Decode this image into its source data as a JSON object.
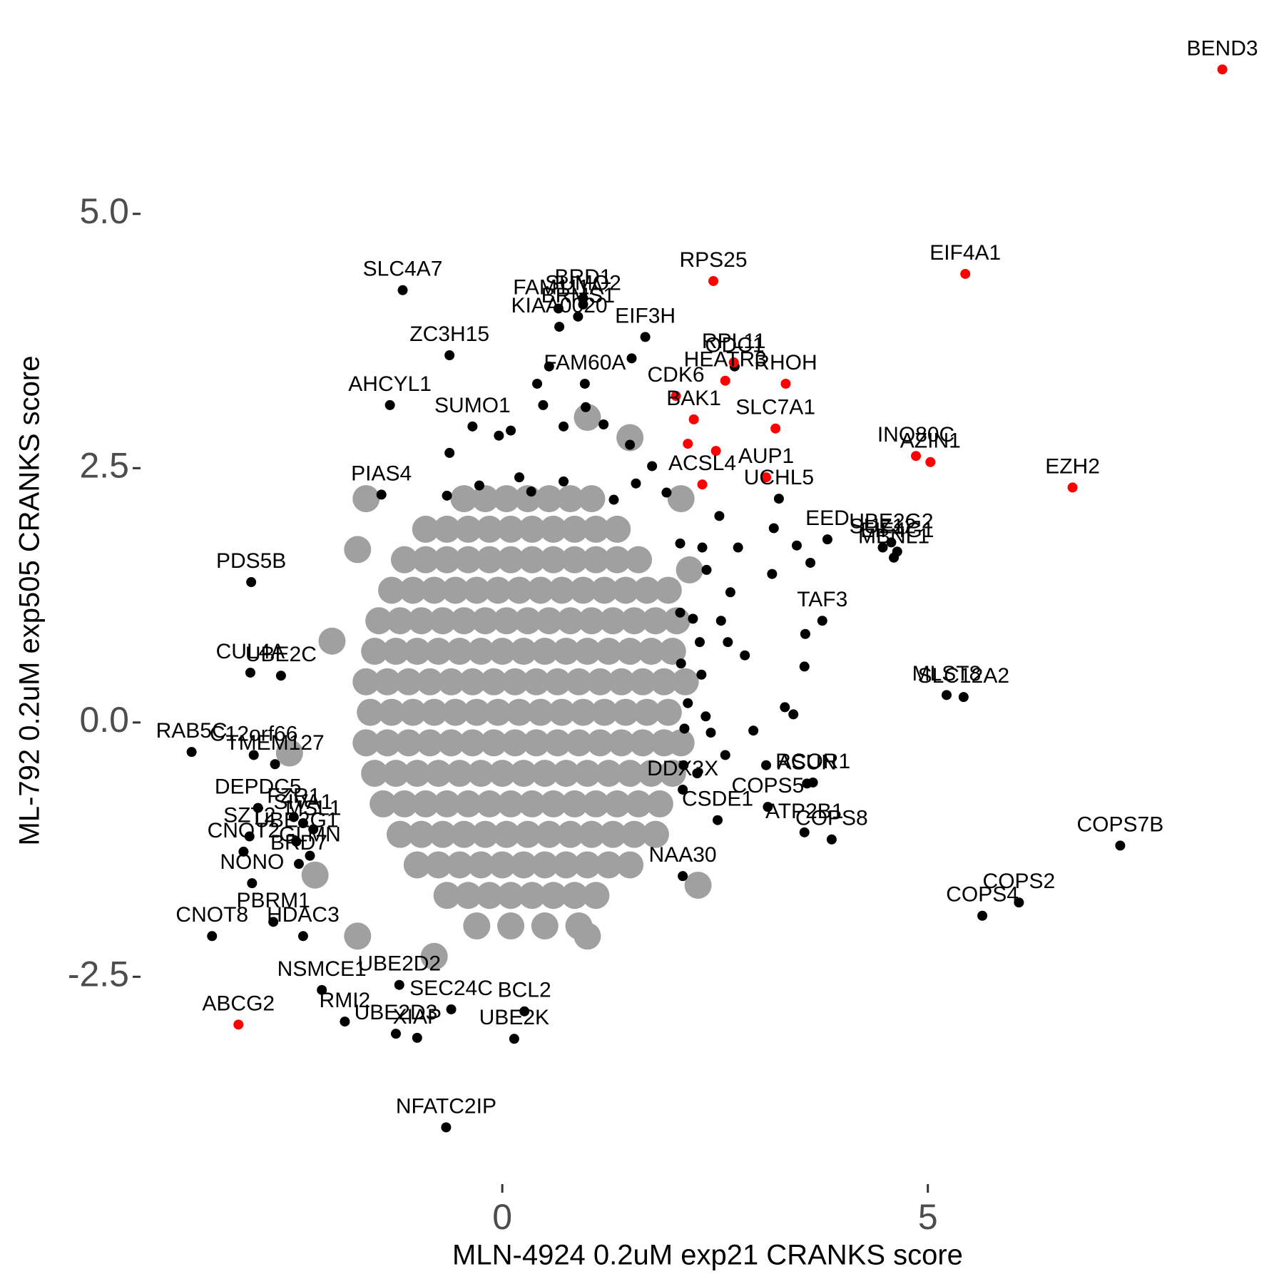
{
  "chart_data": {
    "type": "scatter",
    "x_label": "MLN-4924 0.2uM exp21 CRANKS score",
    "y_label": "ML-792 0.2uM exp505 CRANKS score",
    "xlim": [
      -4.2,
      9.0
    ],
    "ylim": [
      -4.3,
      6.78
    ],
    "xticks": [
      0,
      5
    ],
    "yticks": [
      {
        "value": -2.5,
        "label": "-2.5"
      },
      {
        "value": 0,
        "label": "0.0"
      },
      {
        "value": 2.5,
        "label": "2.5"
      },
      {
        "value": 5,
        "label": "5.0"
      }
    ],
    "grid": false,
    "series": [
      {
        "color": "#a0a0a0",
        "x": [
          -0.45,
          -0.2,
          0.05,
          0.3,
          0.55,
          0.8,
          1.05,
          -0.9,
          -0.65,
          -0.4,
          -0.15,
          0.1,
          0.35,
          0.6,
          0.85,
          1.1,
          1.35,
          -1.15,
          -0.9,
          -0.65,
          -0.4,
          -0.15,
          0.1,
          0.35,
          0.6,
          0.85,
          1.1,
          1.35,
          1.6,
          -1.3,
          -1.05,
          -0.8,
          -0.55,
          -0.3,
          -0.05,
          0.2,
          0.45,
          0.7,
          0.95,
          1.2,
          1.45,
          1.7,
          1.95,
          -1.45,
          -1.2,
          -0.95,
          -0.7,
          -0.45,
          -0.2,
          0.05,
          0.3,
          0.55,
          0.8,
          1.05,
          1.3,
          1.55,
          1.8,
          2.05,
          -1.5,
          -1.25,
          -1,
          -0.75,
          -0.5,
          -0.25,
          0,
          0.25,
          0.5,
          0.75,
          1,
          1.25,
          1.5,
          1.75,
          2.0,
          -1.6,
          -1.35,
          -1.1,
          -0.85,
          -0.6,
          -0.35,
          -0.1,
          0.15,
          0.4,
          0.65,
          0.9,
          1.15,
          1.4,
          1.65,
          1.9,
          2.15,
          -1.55,
          -1.3,
          -1.05,
          -0.8,
          -0.55,
          -0.3,
          -0.05,
          0.2,
          0.45,
          0.7,
          0.95,
          1.2,
          1.45,
          1.7,
          1.95,
          -1.6,
          -1.35,
          -1.1,
          -0.85,
          -0.6,
          -0.35,
          -0.1,
          0.15,
          0.4,
          0.65,
          0.9,
          1.15,
          1.4,
          1.65,
          1.9,
          2.1,
          -1.5,
          -1.25,
          -1,
          -0.75,
          -0.5,
          -0.25,
          0,
          0.25,
          0.5,
          0.75,
          1,
          1.25,
          1.5,
          1.75,
          2.0,
          -1.4,
          -1.15,
          -0.9,
          -0.65,
          -0.4,
          -0.15,
          0.1,
          0.35,
          0.6,
          0.85,
          1.1,
          1.35,
          1.6,
          1.85,
          -1.2,
          -0.95,
          -0.7,
          -0.45,
          -0.2,
          0.05,
          0.3,
          0.55,
          0.8,
          1.05,
          1.3,
          1.55,
          1.8,
          -1.0,
          -0.75,
          -0.5,
          -0.25,
          0,
          0.25,
          0.5,
          0.75,
          1.0,
          1.25,
          1.5,
          -0.65,
          -0.4,
          -0.15,
          0.1,
          0.35,
          0.6,
          0.85,
          1.1,
          -0.3,
          0.1,
          0.5,
          0.9,
          -1.6,
          -1.7,
          -2.5,
          -2.2,
          -1.7,
          2.1,
          2.3,
          1.0,
          -0.8,
          2.2,
          -2.0,
          1.5,
          1.0
        ],
        "values": [
          2.2,
          2.2,
          2.2,
          2.2,
          2.2,
          2.2,
          2.2,
          1.9,
          1.9,
          1.9,
          1.9,
          1.9,
          1.9,
          1.9,
          1.9,
          1.9,
          1.9,
          1.6,
          1.6,
          1.6,
          1.6,
          1.6,
          1.6,
          1.6,
          1.6,
          1.6,
          1.6,
          1.6,
          1.6,
          1.3,
          1.3,
          1.3,
          1.3,
          1.3,
          1.3,
          1.3,
          1.3,
          1.3,
          1.3,
          1.3,
          1.3,
          1.3,
          1.3,
          1.0,
          1.0,
          1.0,
          1.0,
          1.0,
          1.0,
          1.0,
          1.0,
          1.0,
          1.0,
          1.0,
          1.0,
          1.0,
          1.0,
          1.0,
          0.7,
          0.7,
          0.7,
          0.7,
          0.7,
          0.7,
          0.7,
          0.7,
          0.7,
          0.7,
          0.7,
          0.7,
          0.7,
          0.7,
          0.7,
          0.4,
          0.4,
          0.4,
          0.4,
          0.4,
          0.4,
          0.4,
          0.4,
          0.4,
          0.4,
          0.4,
          0.4,
          0.4,
          0.4,
          0.4,
          0.4,
          0.1,
          0.1,
          0.1,
          0.1,
          0.1,
          0.1,
          0.1,
          0.1,
          0.1,
          0.1,
          0.1,
          0.1,
          0.1,
          0.1,
          0.1,
          -0.2,
          -0.2,
          -0.2,
          -0.2,
          -0.2,
          -0.2,
          -0.2,
          -0.2,
          -0.2,
          -0.2,
          -0.2,
          -0.2,
          -0.2,
          -0.2,
          -0.2,
          -0.2,
          -0.5,
          -0.5,
          -0.5,
          -0.5,
          -0.5,
          -0.5,
          -0.5,
          -0.5,
          -0.5,
          -0.5,
          -0.5,
          -0.5,
          -0.5,
          -0.5,
          -0.5,
          -0.8,
          -0.8,
          -0.8,
          -0.8,
          -0.8,
          -0.8,
          -0.8,
          -0.8,
          -0.8,
          -0.8,
          -0.8,
          -0.8,
          -0.8,
          -0.8,
          -1.1,
          -1.1,
          -1.1,
          -1.1,
          -1.1,
          -1.1,
          -1.1,
          -1.1,
          -1.1,
          -1.1,
          -1.1,
          -1.1,
          -1.1,
          -1.4,
          -1.4,
          -1.4,
          -1.4,
          -1.4,
          -1.4,
          -1.4,
          -1.4,
          -1.4,
          -1.4,
          -1.4,
          -1.7,
          -1.7,
          -1.7,
          -1.7,
          -1.7,
          -1.7,
          -1.7,
          -1.7,
          -2.0,
          -2.0,
          -2.0,
          -2.0,
          2.2,
          1.7,
          -0.3,
          -1.5,
          -2.1,
          2.2,
          -1.6,
          -2.1,
          -2.3,
          1.5,
          0.8,
          2.8,
          3.0
        ]
      },
      {
        "color": "#000000",
        "x": [
          -1.17,
          0.66,
          0.95,
          0.95,
          0.89,
          0.67,
          1.68,
          -0.62,
          2.73,
          -1.32,
          -0.35,
          0.97,
          3.25,
          -1.42,
          -2.95,
          3.82,
          4.57,
          4.47,
          4.64,
          4.6,
          3.76,
          5.22,
          5.42,
          -2.96,
          -2.6,
          -2.92,
          -3.65,
          -2.67,
          -2.87,
          -2.45,
          -2.34,
          -2.97,
          -2.22,
          -2.42,
          -3.04,
          -2.26,
          -2.39,
          -2.69,
          -2.94,
          -2.34,
          -3.41,
          -1.21,
          -2.12,
          -0.6,
          -1.85,
          -1.25,
          -1.0,
          0.26,
          0.14,
          -0.66,
          2.12,
          3.12,
          3.65,
          2.53,
          3.55,
          3.58,
          3.87,
          2.12,
          7.26,
          6.07,
          5.64,
          2.09,
          2.35,
          2.4,
          2.68,
          2.09,
          2.24,
          2.57,
          2.32,
          2.65,
          2.85,
          2.1,
          2.34,
          2.18,
          2.39,
          2.14,
          2.45,
          2.62,
          2.29,
          2.95,
          3.32,
          3.55,
          3.56,
          3.46,
          3.62,
          3.17,
          2.77,
          3.19,
          2.55,
          1.93,
          1.57,
          1.31,
          1.76,
          1.5,
          1.19,
          0.72,
          0.1,
          -0.04,
          -0.62,
          -0.65,
          -0.27,
          0.2,
          0.34,
          0.72,
          0.98,
          0.48,
          0.41,
          0.55,
          1.52,
          3.42,
          3.1,
          2.13
        ],
        "values": [
          4.25,
          4.07,
          4.17,
          4.11,
          3.99,
          3.89,
          3.79,
          3.61,
          3.5,
          3.12,
          2.91,
          3.33,
          2.2,
          2.24,
          1.38,
          1.8,
          1.77,
          1.72,
          1.68,
          1.62,
          1.0,
          0.27,
          0.25,
          0.49,
          0.46,
          -0.32,
          -0.29,
          -0.41,
          -0.84,
          -0.93,
          -0.99,
          -1.12,
          -1.05,
          -1.17,
          -1.27,
          -1.31,
          -1.39,
          -1.96,
          -1.58,
          -2.1,
          -2.1,
          -2.58,
          -2.63,
          -2.82,
          -2.94,
          -3.06,
          -3.1,
          -2.84,
          -3.11,
          -3.98,
          -0.66,
          -0.83,
          -0.59,
          -0.96,
          -1.08,
          -0.6,
          -1.15,
          -1.51,
          -1.21,
          -1.77,
          -1.9,
          1.76,
          1.72,
          1.5,
          1.28,
          1.08,
          1.02,
          1.0,
          0.79,
          0.79,
          0.66,
          0.58,
          0.47,
          0.19,
          0.06,
          -0.06,
          -0.1,
          -0.32,
          -0.5,
          -0.08,
          0.15,
          0.55,
          0.87,
          1.74,
          1.57,
          1.46,
          1.72,
          1.91,
          2.03,
          2.26,
          2.35,
          2.19,
          2.52,
          2.73,
          2.93,
          2.91,
          2.87,
          2.82,
          2.65,
          2.23,
          2.33,
          2.41,
          2.27,
          2.37,
          3.1,
          3.12,
          3.33,
          3.5,
          3.58,
          0.08,
          -0.42,
          -0.42
        ],
        "labels": [
          "SLC4A7",
          "FAM111A",
          "BRD1",
          "SUMO2",
          "BRMS1",
          "KIAA0020",
          "EIF3H",
          "ZC3H15",
          "ODC1",
          "AHCYL1",
          "SUMO1",
          "FAM60A",
          "UCHL5",
          "PIAS4",
          "PDS5B",
          "EED",
          "UBE2G2",
          "SUZ12",
          "EIF4G1",
          "MBNL1",
          "TAF3",
          "MLST8",
          "SLC12A2",
          "CUL4A",
          "UBE2C",
          "C12orf66",
          "RAB5C",
          "TMEM127",
          "DEPDC5",
          "FZR1",
          "SIVA1",
          "SZT2",
          "MSL1",
          "UBE2G1",
          "CNOT2",
          "GLMN",
          "BRD7",
          "PBRM1",
          "NONO",
          "HDAC3",
          "CNOT8",
          "UBE2D2",
          "NSMCE1",
          "SEC24C",
          "RMI2",
          "UBE2D3",
          "XIAP",
          "BCL2",
          "UBE2K",
          "NFATC2IP",
          "DDX3X",
          "COPS5",
          "RCOR1",
          "CSDE1",
          "ATP2B1",
          "ASUN",
          "COPS8",
          "NAA30",
          "COPS7B",
          "COPS2",
          "COPS4",
          null,
          null,
          null,
          null,
          null,
          null,
          null,
          null,
          null,
          null,
          null,
          null,
          null,
          null,
          null,
          null,
          null,
          null,
          null,
          null,
          null,
          null,
          null,
          null,
          null,
          null,
          null,
          null,
          null,
          null,
          null,
          null,
          null,
          null,
          null,
          null,
          null,
          null,
          null,
          null,
          null,
          null,
          null,
          null,
          null,
          null,
          null,
          null,
          null,
          null,
          null
        ]
      },
      {
        "color": "#ff0000",
        "x": [
          8.46,
          5.44,
          2.48,
          6.7,
          4.86,
          5.03,
          3.21,
          3.33,
          2.62,
          2.72,
          3.1,
          2.25,
          2.04,
          2.35,
          2.18,
          2.51,
          -3.1
        ],
        "values": [
          6.42,
          4.41,
          4.34,
          2.31,
          2.62,
          2.56,
          2.89,
          3.33,
          3.36,
          3.54,
          2.41,
          2.98,
          3.21,
          2.34,
          2.74,
          2.67,
          -2.97
        ],
        "labels": [
          "BEND3",
          "EIF4A1",
          "RPS25",
          "EZH2",
          "INO80C",
          "AZIN1",
          "SLC7A1",
          "RHOH",
          "HEATR3",
          "RPL11",
          "AUP1",
          "BAK1",
          "CDK6",
          "ACSL4",
          null,
          null,
          "ABCG2"
        ]
      }
    ]
  }
}
